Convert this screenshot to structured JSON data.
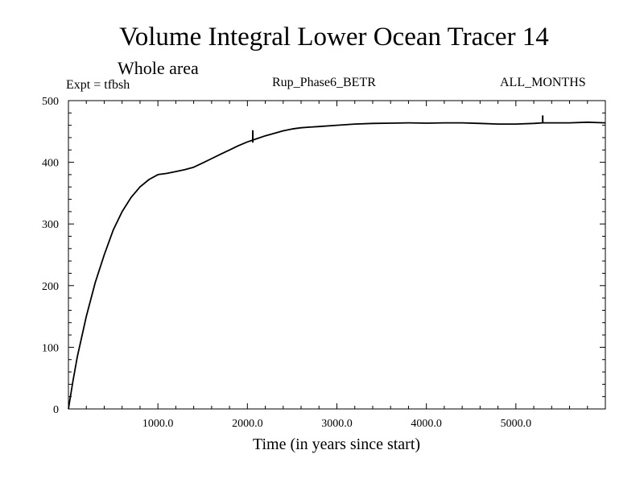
{
  "chart_data": {
    "type": "line",
    "title": "Volume Integral Lower Ocean Tracer 14",
    "subtitle": "Whole area",
    "expt_label": "Expt = tfbsh",
    "run_label": "Rup_Phase6_BETR",
    "months_label": "ALL_MONTHS",
    "xlabel": "Time (in years since start)",
    "ylabel": "",
    "xlim": [
      0,
      6000
    ],
    "ylim": [
      0,
      500
    ],
    "x_ticks": [
      1000,
      2000,
      3000,
      4000,
      5000
    ],
    "x_tick_labels": [
      "1000.0",
      "2000.0",
      "3000.0",
      "4000.0",
      "5000.0"
    ],
    "y_ticks": [
      0,
      100,
      200,
      300,
      400,
      500
    ],
    "y_tick_labels": [
      "0",
      "100",
      "200",
      "300",
      "400",
      "500"
    ],
    "series": [
      {
        "name": "Lower Ocean Tracer 14",
        "x": [
          0,
          50,
          100,
          200,
          300,
          400,
          500,
          600,
          700,
          800,
          900,
          1000,
          1100,
          1200,
          1300,
          1400,
          1500,
          1600,
          1700,
          1800,
          1900,
          2000,
          2060,
          2100,
          2200,
          2300,
          2400,
          2500,
          2600,
          2700,
          2800,
          3000,
          3200,
          3400,
          3600,
          3800,
          4000,
          4200,
          4400,
          4600,
          4800,
          5000,
          5200,
          5300,
          5400,
          5600,
          5800,
          6000
        ],
        "y": [
          0,
          45,
          85,
          150,
          205,
          250,
          290,
          320,
          343,
          360,
          372,
          380,
          382,
          385,
          388,
          392,
          399,
          406,
          413,
          420,
          427,
          433,
          436,
          438,
          443,
          447,
          451,
          454,
          456,
          457,
          458,
          460,
          462,
          463,
          463.5,
          464,
          463.5,
          464,
          464,
          463,
          462,
          462,
          463,
          464,
          464,
          464,
          465,
          464
        ]
      }
    ],
    "spikes": [
      {
        "x": 2060,
        "y_low": 432,
        "y_high": 452
      },
      {
        "x": 5300,
        "y_low": 464,
        "y_high": 476
      }
    ]
  }
}
